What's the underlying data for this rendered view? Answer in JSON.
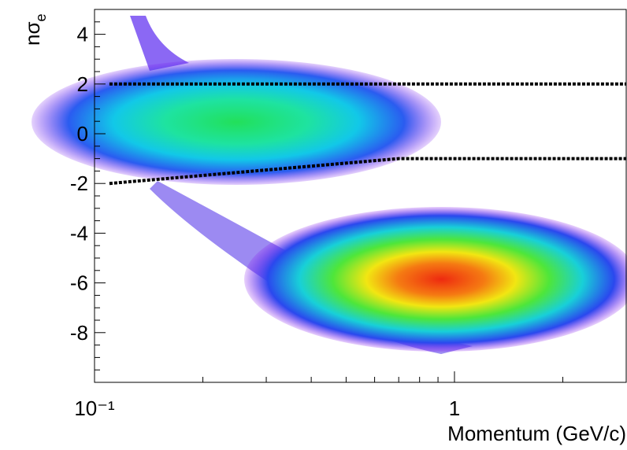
{
  "chart_data": {
    "type": "line",
    "ylabel": "nσ",
    "ylabel_sub": "e",
    "xlabel": "Momentum (GeV/c)",
    "xscale": "log",
    "xlim": [
      0.1,
      3
    ],
    "ylim": [
      -10,
      5
    ],
    "xticks": [
      {
        "value": 0.1,
        "label": "10⁻¹"
      },
      1
    ],
    "xminorticks": [
      0.2,
      0.3,
      0.4,
      0.5,
      0.6,
      0.7,
      0.8,
      0.9,
      2,
      3
    ],
    "yticks": [
      -8,
      -6,
      -4,
      -2,
      0,
      2,
      4
    ],
    "yminorticks": [
      -9.5,
      -9,
      -8.5,
      -7.5,
      -7,
      -6.5,
      -5.5,
      -5,
      -4.5,
      -3.5,
      -3,
      -2.5,
      -1.5,
      -1,
      -0.5,
      0.5,
      1,
      1.5,
      2.5,
      3,
      3.5,
      4.5
    ],
    "series": [
      {
        "color": "#000000",
        "x": [
          0.11,
          3
        ],
        "values": [
          2,
          2
        ]
      },
      {
        "color": "#000000",
        "x": [
          0.11,
          0.7,
          3
        ],
        "values": [
          -2,
          -1,
          -1
        ]
      }
    ]
  }
}
